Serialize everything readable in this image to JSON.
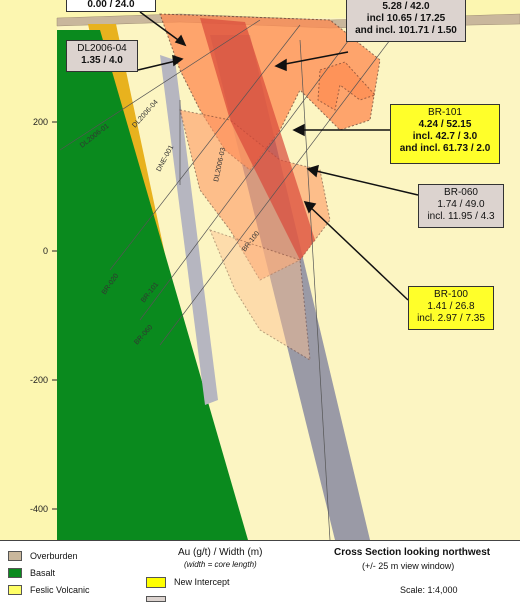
{
  "axis": {
    "ticks": [
      "200",
      "0",
      "-200",
      "-400"
    ]
  },
  "drillholes": [
    {
      "label": "DL2006-01"
    },
    {
      "label": "DL2006-04"
    },
    {
      "label": "DNE-001"
    },
    {
      "label": "DL2006-03"
    },
    {
      "label": "BR-020"
    },
    {
      "label": "BR-101"
    },
    {
      "label": "BR-060"
    },
    {
      "label": "BR-100"
    }
  ],
  "callouts": {
    "top_left": {
      "line1": "0.00 / 24.0"
    },
    "dl2006_04": {
      "title": "DL2006-04",
      "line1": "1.35 / 4.0"
    },
    "top_right": {
      "line1": "5.28 / 42.0",
      "line2": "incl 10.65 / 17.25",
      "line3": "and incl. 101.71 / 1.50"
    },
    "br101": {
      "title": "BR-101",
      "line1": "4.24 / 52.15",
      "line2": "incl. 42.7 / 3.0",
      "line3": "and incl. 61.73 / 2.0"
    },
    "br060": {
      "title": "BR-060",
      "line1": "1.74 / 49.0",
      "line2": "incl. 11.95 / 4.3"
    },
    "br100": {
      "title": "BR-100",
      "line1": "1.41 / 26.8",
      "line2": "incl. 2.97 / 7.35"
    }
  },
  "legend": {
    "units": [
      {
        "label": "Overburden",
        "color": "#c9b79c"
      },
      {
        "label": "Basalt",
        "color": "#0a8a1e"
      },
      {
        "label": "Feslic Volcanic",
        "color": "#ffff66"
      }
    ],
    "au_title": "Au (g/t) / Width (m)",
    "au_subtitle": "(width = core length)",
    "new_intercept": "New Intercept",
    "new_intercept_color": "#ffff00",
    "cross_title": "Cross Section looking northwest",
    "cross_subtitle": "(+/- 25 m view window)",
    "scale": "Scale: 1:4,000"
  },
  "colors": {
    "background_rock": "#fcf6b0",
    "mafic_unit": "#e8b21e",
    "alteration": "#ff8a50",
    "mineralization": "#d8483a",
    "dyke": "#9a9aa6"
  }
}
